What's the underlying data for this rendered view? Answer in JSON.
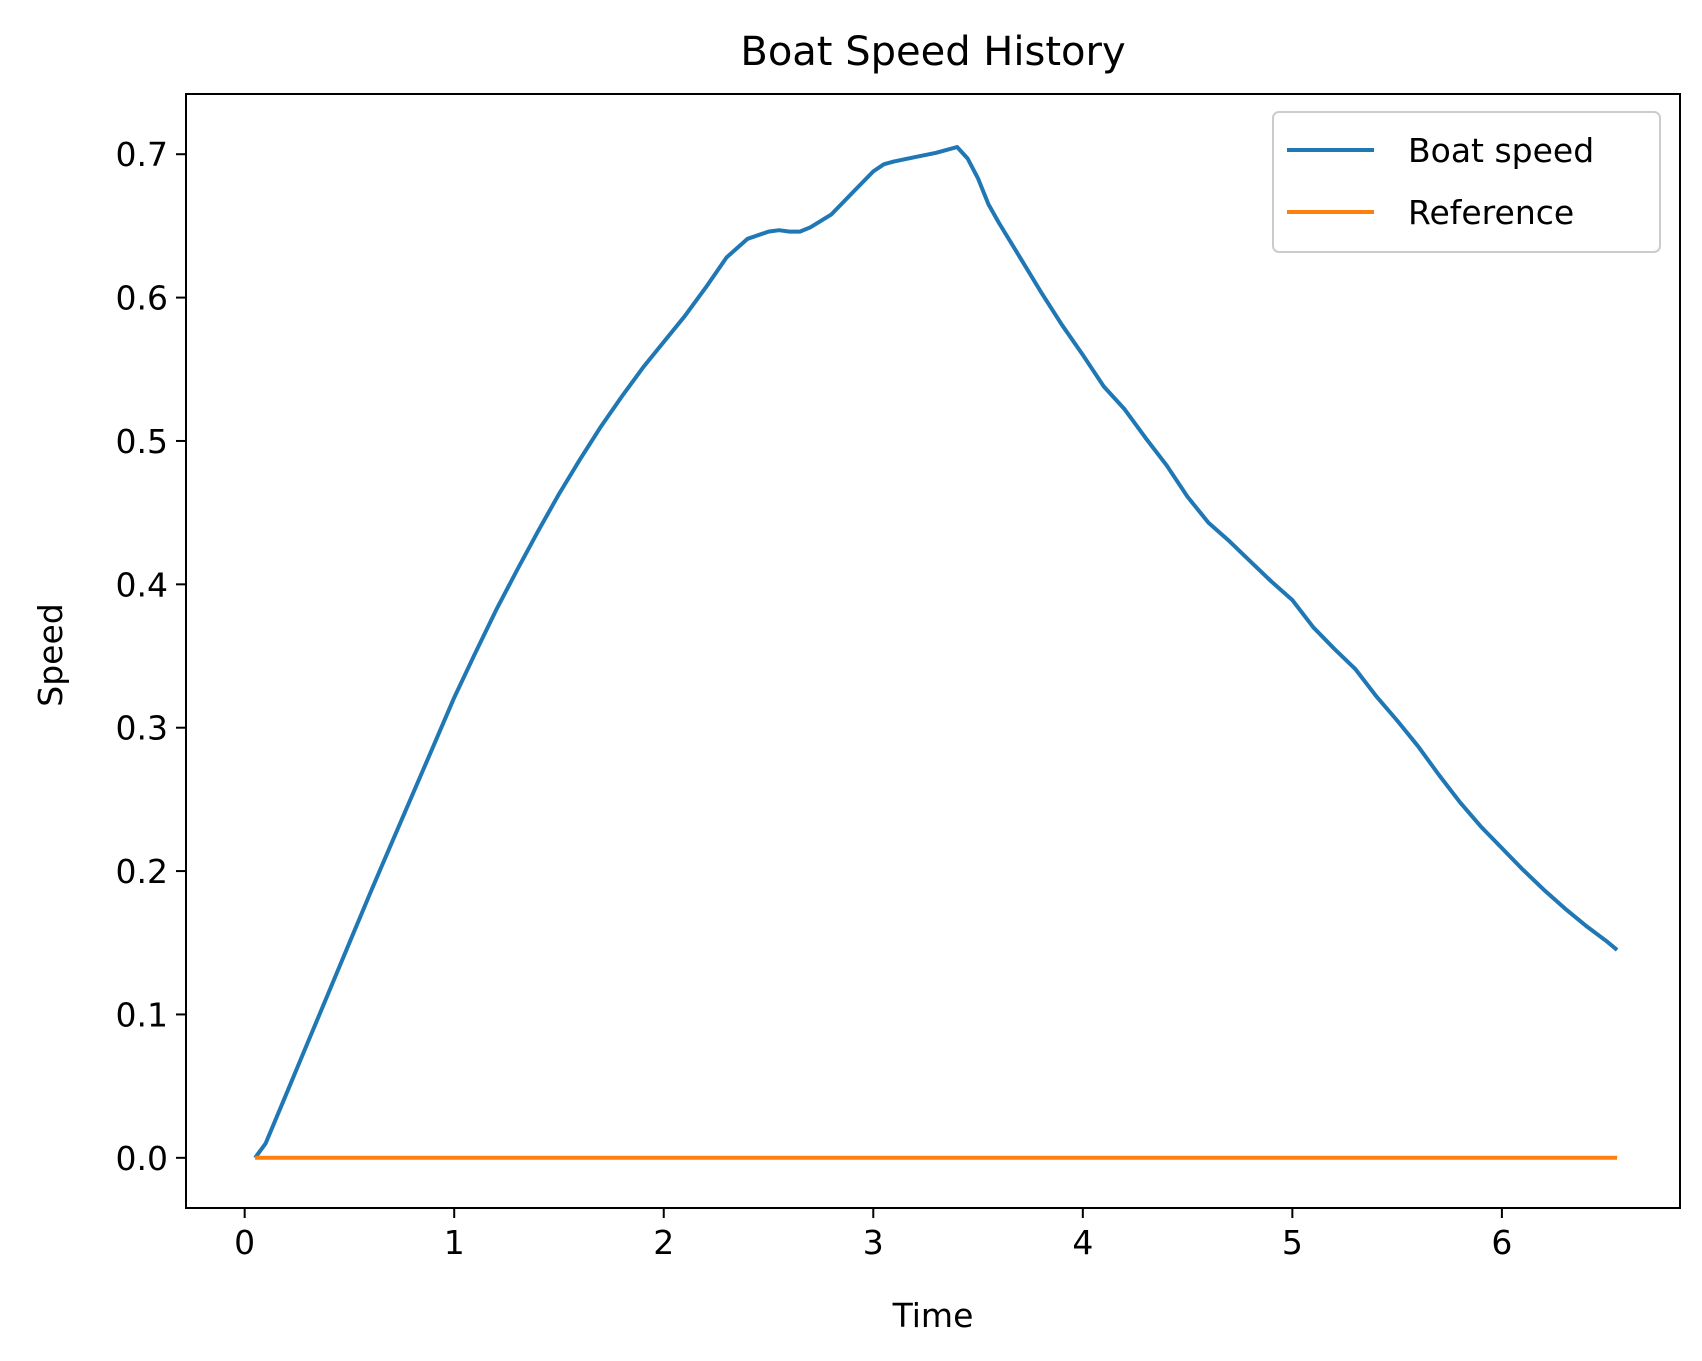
{
  "chart_data": {
    "type": "line",
    "title": "Boat Speed History",
    "xlabel": "Time",
    "ylabel": "Speed",
    "xlim": [
      -0.28,
      6.85
    ],
    "ylim": [
      -0.035,
      0.742
    ],
    "xticks": [
      0,
      1,
      2,
      3,
      4,
      5,
      6
    ],
    "xtick_labels": [
      "0",
      "1",
      "2",
      "3",
      "4",
      "5",
      "6"
    ],
    "yticks": [
      0.0,
      0.1,
      0.2,
      0.3,
      0.4,
      0.5,
      0.6,
      0.7
    ],
    "ytick_labels": [
      "0.0",
      "0.1",
      "0.2",
      "0.3",
      "0.4",
      "0.5",
      "0.6",
      "0.7"
    ],
    "grid": false,
    "legend": "upper right",
    "series": [
      {
        "name": "Boat speed",
        "color": "#1f77b4",
        "x": [
          0.05,
          0.1,
          0.2,
          0.3,
          0.4,
          0.5,
          0.6,
          0.7,
          0.8,
          0.9,
          1.0,
          1.1,
          1.2,
          1.3,
          1.4,
          1.5,
          1.6,
          1.7,
          1.8,
          1.9,
          2.0,
          2.1,
          2.2,
          2.3,
          2.4,
          2.5,
          2.55,
          2.6,
          2.65,
          2.7,
          2.8,
          2.9,
          3.0,
          3.05,
          3.1,
          3.2,
          3.3,
          3.35,
          3.4,
          3.45,
          3.5,
          3.55,
          3.6,
          3.7,
          3.8,
          3.9,
          4.0,
          4.1,
          4.2,
          4.3,
          4.4,
          4.5,
          4.6,
          4.7,
          4.8,
          4.9,
          5.0,
          5.1,
          5.2,
          5.3,
          5.4,
          5.5,
          5.6,
          5.7,
          5.8,
          5.9,
          6.0,
          6.1,
          6.2,
          6.3,
          6.4,
          6.5,
          6.55
        ],
        "y": [
          0.0,
          0.01,
          0.045,
          0.08,
          0.115,
          0.15,
          0.185,
          0.219,
          0.253,
          0.287,
          0.321,
          0.352,
          0.382,
          0.41,
          0.437,
          0.463,
          0.487,
          0.51,
          0.531,
          0.551,
          0.569,
          0.587,
          0.607,
          0.628,
          0.641,
          0.646,
          0.647,
          0.646,
          0.646,
          0.649,
          0.658,
          0.673,
          0.688,
          0.693,
          0.695,
          0.698,
          0.701,
          0.703,
          0.705,
          0.697,
          0.683,
          0.665,
          0.652,
          0.628,
          0.604,
          0.581,
          0.56,
          0.538,
          0.522,
          0.502,
          0.483,
          0.461,
          0.443,
          0.43,
          0.416,
          0.402,
          0.389,
          0.37,
          0.355,
          0.341,
          0.322,
          0.305,
          0.287,
          0.267,
          0.248,
          0.231,
          0.216,
          0.201,
          0.187,
          0.174,
          0.162,
          0.151,
          0.145
        ]
      },
      {
        "name": "Reference",
        "color": "#ff7f0e",
        "x": [
          0.05,
          6.55
        ],
        "y": [
          0.0,
          0.0
        ]
      }
    ]
  }
}
